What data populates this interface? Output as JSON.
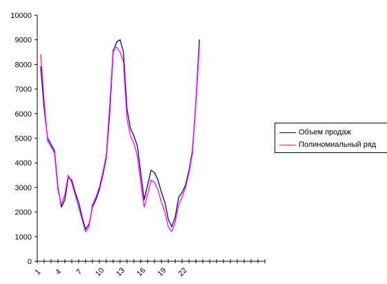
{
  "chart_data": {
    "type": "line",
    "title": "",
    "xlabel": "",
    "ylabel": "",
    "ylim": [
      0,
      10000
    ],
    "yticks": [
      0,
      1000,
      2000,
      3000,
      4000,
      5000,
      6000,
      7000,
      8000,
      9000,
      10000
    ],
    "x_tick_labels": [
      "1",
      "4",
      "7",
      "10",
      "13",
      "16",
      "19",
      "22"
    ],
    "x_tick_label_positions": [
      1,
      4,
      7,
      10,
      13,
      16,
      19,
      22
    ],
    "x_axis_ticks": 33,
    "grid": false,
    "legend_position": "right",
    "series": [
      {
        "name": "Объем продаж",
        "color": "#000080",
        "x": [
          1,
          1.5,
          2,
          3,
          3.5,
          4,
          4.5,
          5,
          5.5,
          6,
          6.5,
          7,
          7.5,
          8,
          8.5,
          9,
          9.5,
          10,
          10.5,
          11,
          11.5,
          12,
          12.5,
          13,
          13.5,
          14,
          14.5,
          15,
          15.5,
          16,
          16.5,
          17,
          17.5,
          18,
          18.5,
          19,
          19.5,
          20,
          20.5,
          21,
          21.5,
          22,
          22.5,
          23,
          23.5,
          24
        ],
        "values": [
          7900,
          6200,
          5000,
          4500,
          3000,
          2200,
          2500,
          3400,
          3300,
          2800,
          2400,
          1800,
          1300,
          1500,
          2200,
          2500,
          2900,
          3500,
          4200,
          6000,
          8500,
          8900,
          9000,
          8500,
          6200,
          5400,
          5100,
          4700,
          3600,
          2500,
          3100,
          3700,
          3600,
          3300,
          2800,
          2400,
          1700,
          1400,
          1800,
          2600,
          2800,
          3100,
          3700,
          4500,
          6500,
          9000
        ]
      },
      {
        "name": "Полиномиальный ряд",
        "color": "#ff00ff",
        "x": [
          1,
          1.5,
          2,
          3,
          3.5,
          4,
          4.5,
          5,
          5.5,
          6,
          6.5,
          7,
          7.5,
          8,
          8.5,
          9,
          9.5,
          10,
          10.5,
          11,
          11.5,
          12,
          12.5,
          13,
          13.5,
          14,
          14.5,
          15,
          15.5,
          16,
          16.5,
          17,
          17.5,
          18,
          18.5,
          19,
          19.5,
          20,
          20.5,
          21,
          21.5,
          22,
          22.5,
          23,
          23.5,
          24
        ],
        "values": [
          8400,
          6500,
          4900,
          4400,
          2900,
          2300,
          2700,
          3500,
          3200,
          2700,
          2200,
          1700,
          1200,
          1400,
          2300,
          2600,
          3000,
          3600,
          4300,
          6300,
          8600,
          8700,
          8500,
          8100,
          5800,
          5100,
          4800,
          4300,
          3200,
          2200,
          2700,
          3300,
          3200,
          2900,
          2400,
          2000,
          1400,
          1200,
          1600,
          2300,
          2600,
          3000,
          3600,
          4400,
          6400,
          8700
        ]
      }
    ]
  }
}
